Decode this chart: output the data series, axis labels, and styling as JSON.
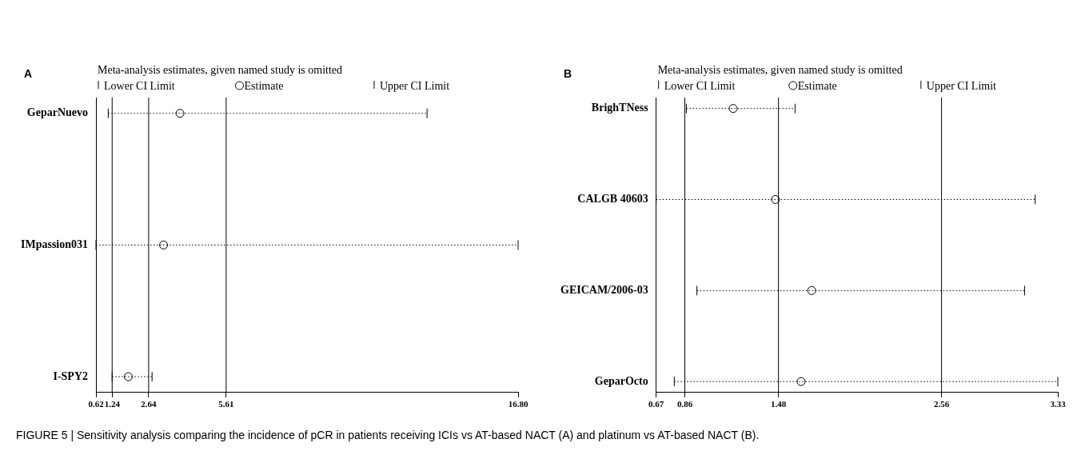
{
  "chart_data": [
    {
      "type": "scatter",
      "orientation": "horizontal",
      "title": "Meta-analysis estimates, given named study is omitted",
      "annotations": [
        "A",
        "FIGURE 5 | Sensitivity analysis comparing the incidence of pCR in patients receiving ICIs vs AT-based NACT (A) and platinum vs AT-based NACT (B)."
      ],
      "categories": [
        "GeparNuevo",
        "IMpassion031",
        "I-SPY2"
      ],
      "series": [
        {
          "color": "#000000",
          "values": [
            3.84,
            3.21,
            1.86
          ],
          "errors": [
            [
              1.09,
              13.31
            ],
            [
              0.62,
              16.8
            ],
            [
              1.24,
              2.77
            ]
          ]
        }
      ],
      "marker": "circle",
      "legend": "top",
      "grid": false,
      "xlim": [
        0.62,
        16.8
      ],
      "xticks": [
        0.62,
        1.24,
        2.64,
        5.61,
        {
          "value": 16.8,
          "label": "16.80"
        }
      ],
      "ref_lines": [
        {
          "axis": "x",
          "value": 1.24,
          "label": "Lower CI Limit"
        },
        {
          "axis": "x",
          "value": 2.64,
          "label": "Estimate"
        },
        {
          "axis": "x",
          "value": 5.61,
          "label": "Upper CI Limit"
        }
      ]
    },
    {
      "type": "scatter",
      "orientation": "horizontal",
      "title": "Meta-analysis estimates, given named study is omitted",
      "annotations": [
        "B"
      ],
      "categories": [
        "BrighTNess",
        "CALGB 40603",
        "GEICAM/2006-03",
        "GeparOcto"
      ],
      "series": [
        {
          "color": "#000000",
          "values": [
            1.18,
            1.46,
            1.7,
            1.63
          ],
          "errors": [
            [
              0.87,
              1.59
            ],
            [
              0.67,
              3.18
            ],
            [
              0.94,
              3.11
            ],
            [
              0.79,
              3.33
            ]
          ]
        }
      ],
      "marker": "circle",
      "legend": "top",
      "grid": false,
      "xlim": [
        0.67,
        3.33
      ],
      "xticks": [
        0.67,
        0.86,
        1.48,
        2.56,
        3.33
      ],
      "ref_lines": [
        {
          "axis": "x",
          "value": 0.86,
          "label": "Lower CI Limit"
        },
        {
          "axis": "x",
          "value": 1.48,
          "label": "Estimate"
        },
        {
          "axis": "x",
          "value": 2.56,
          "label": "Upper CI Limit"
        }
      ]
    }
  ]
}
